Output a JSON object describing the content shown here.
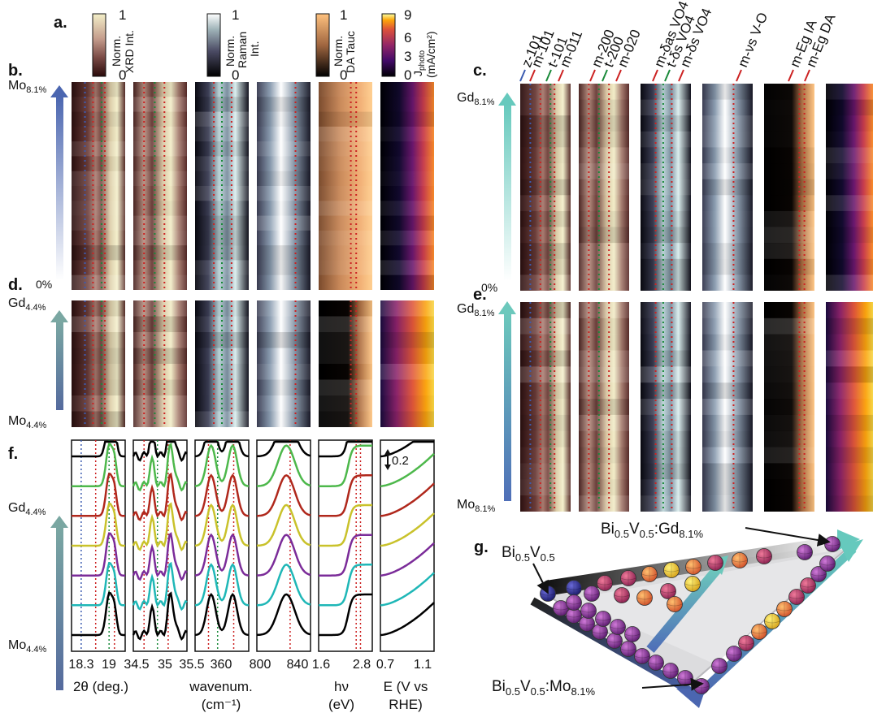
{
  "panel_labels": {
    "a": "a.",
    "b": "b.",
    "c": "c.",
    "d": "d.",
    "e": "e.",
    "f": "f.",
    "g": "g."
  },
  "colorbars": [
    {
      "max": "1",
      "min": "0",
      "title_lines": [
        "Norm.",
        "XRD Int."
      ],
      "colormap": "pink"
    },
    {
      "max": "1",
      "min": "0",
      "title_lines": [
        "Norm.",
        "Raman",
        "Int."
      ],
      "colormap": "bone"
    },
    {
      "max": "1",
      "min": "0",
      "title_lines": [
        "Norm.",
        "DA Tauc"
      ],
      "colormap": "copper"
    },
    {
      "max": "9",
      "mid_ticks": [
        "6",
        "3"
      ],
      "min": "0",
      "title_lines": [
        "J",
        "(mA/cm²)"
      ],
      "title_sub": "photo",
      "colormap": "inferno"
    }
  ],
  "row_b": {
    "top_label": "Mo",
    "top_sub": "8.1%",
    "bottom_label": "0%"
  },
  "row_d": {
    "top_label": "Gd",
    "top_sub": "4.4%",
    "bottom_label": "Mo",
    "bottom_sub": "4.4%"
  },
  "row_c": {
    "top_label": "Gd",
    "top_sub": "8.1%",
    "bottom_label": "0%"
  },
  "row_e": {
    "top_label": "Gd",
    "top_sub": "8.1%",
    "bottom_label": "Mo",
    "bottom_sub": "8.1%"
  },
  "row_f": {
    "top_label": "Gd",
    "top_sub": "4.4%",
    "bottom_label": "Mo",
    "bottom_sub": "4.4%",
    "scale_label": "0.2"
  },
  "peak_labels": [
    "z-101",
    "m-101",
    "t-101",
    "m-011",
    "m-200",
    "t-200",
    "m-020",
    "m-δas VO4",
    "t-δs VO4",
    "m-δs VO4",
    "m-νs V-O",
    "m-Eg IA",
    "m-Eg DA"
  ],
  "axes": [
    {
      "ticks": [
        "18.3",
        "19"
      ],
      "label_lines": [
        "2θ (deg.)"
      ]
    },
    {
      "ticks": [
        "34.5",
        "35",
        "35.5"
      ],
      "label_lines": [
        ""
      ]
    },
    {
      "ticks": [
        "360"
      ],
      "label_lines": [
        "wavenum.",
        "(cm⁻¹)"
      ]
    },
    {
      "ticks": [
        "800",
        "840"
      ],
      "label_lines": [
        ""
      ]
    },
    {
      "ticks": [
        "1.6",
        "2.8"
      ],
      "label_lines": [
        "hν",
        "(eV)"
      ]
    },
    {
      "ticks": [
        "0.7",
        "1.1"
      ],
      "label_lines": [
        "E (V vs",
        "RHE)"
      ]
    }
  ],
  "ternary": {
    "corner_top_left": "Bi0.5V0.5",
    "corner_top_right": "Bi0.5V0.5:Gd8.1%",
    "corner_bottom": "Bi0.5V0.5:Mo8.1%"
  },
  "line_colors": [
    "#000000",
    "#1fb7b7",
    "#7b2c99",
    "#c9c22b",
    "#b0281c",
    "#4db84b",
    "#000000"
  ]
}
